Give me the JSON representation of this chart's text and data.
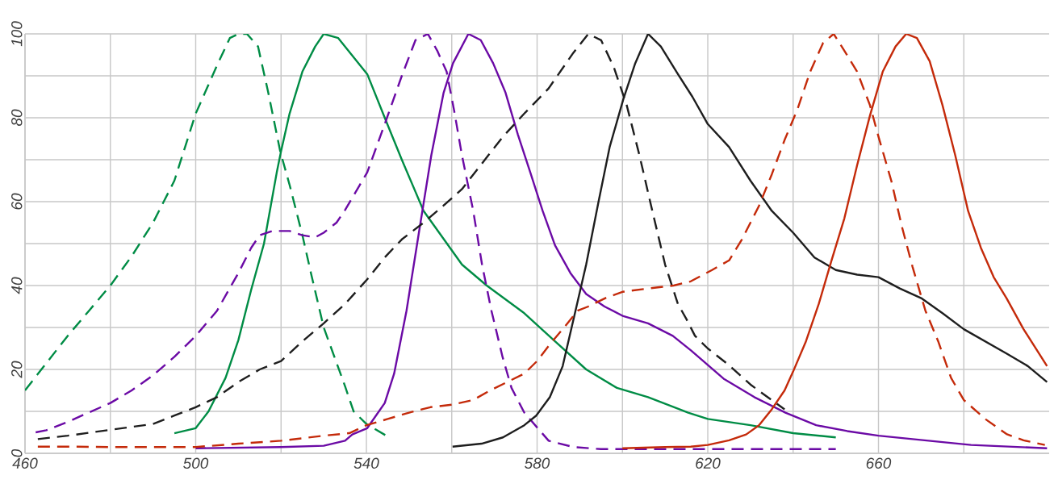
{
  "chart_data": {
    "type": "line",
    "xlim": [
      460,
      700
    ],
    "ylim": [
      0,
      100
    ],
    "xticks": [
      460,
      {
        "value": 480,
        "label": null
      },
      500,
      {
        "value": 520,
        "label": null
      },
      540,
      {
        "value": 560,
        "label": null
      },
      580,
      {
        "value": 600,
        "label": null
      },
      620,
      {
        "value": 640,
        "label": null
      },
      660,
      {
        "value": 680,
        "label": null
      }
    ],
    "yticks": [
      0,
      {
        "value": 10,
        "label": null
      },
      20,
      {
        "value": 30,
        "label": null
      },
      40,
      {
        "value": 50,
        "label": null
      },
      60,
      {
        "value": 70,
        "label": null
      },
      80,
      {
        "value": 90,
        "label": null
      },
      100
    ],
    "grid": true,
    "marker": "none",
    "series": [
      {
        "color": "#008c45",
        "line_style": "dashed",
        "x": [
          460,
          465,
          470,
          475,
          480,
          485,
          490,
          495,
          500,
          505,
          508,
          510,
          512,
          514.6,
          517,
          519.8,
          522,
          525,
          527,
          530,
          535,
          537,
          540,
          545
        ],
        "values": [
          15,
          21.5,
          28,
          34,
          40,
          47,
          55,
          65,
          81,
          92.5,
          99,
          100,
          100,
          97,
          86,
          72,
          64,
          52,
          43,
          30,
          16,
          10,
          7,
          4
        ]
      },
      {
        "color": "#008c45",
        "line_style": "solid",
        "x": [
          495,
          500,
          503,
          507,
          510,
          513,
          516,
          519,
          520,
          522,
          525,
          528,
          530,
          533.4,
          540.2,
          544.3,
          548.3,
          553.4,
          562.4,
          568.2,
          577,
          584.2,
          591.5,
          598.7,
          606,
          615.4,
          620,
          630,
          640,
          650
        ],
        "values": [
          4.8,
          6,
          10,
          18,
          27,
          39,
          50,
          67,
          72,
          81,
          91,
          97,
          100,
          99,
          90.4,
          80,
          70,
          57.8,
          45,
          40,
          33.4,
          26.7,
          20,
          15.6,
          13.4,
          9.7,
          8.2,
          6.7,
          4.8,
          3.8
        ]
      },
      {
        "color": "#6b0aa5",
        "line_style": "dashed",
        "x": [
          462.5,
          465,
          470,
          480,
          485,
          490,
          495,
          500,
          505,
          510,
          513,
          515,
          518,
          522,
          525,
          528,
          530,
          533,
          535,
          540.2,
          544.3,
          548.3,
          551.5,
          554.4,
          556.6,
          558.8,
          560.6,
          562.4,
          565,
          567.1,
          569.3,
          571.9,
          574,
          577,
          582.7,
          588.5,
          595,
          606,
          650
        ],
        "values": [
          5,
          5.5,
          7.5,
          12,
          15,
          18.6,
          23,
          28,
          34,
          43,
          49,
          52,
          53,
          53,
          52,
          51.5,
          52.6,
          55,
          58,
          67,
          78.5,
          90,
          98.5,
          100,
          96,
          91,
          81.5,
          71,
          58,
          45,
          34,
          23,
          15.6,
          9.7,
          3,
          1.5,
          1,
          1,
          1
        ]
      },
      {
        "color": "#6b0aa5",
        "line_style": "solid",
        "x": [
          500,
          520,
          530,
          535,
          536.7,
          540.2,
          544.3,
          546.5,
          549.4,
          552.3,
          555.2,
          558.1,
          560.3,
          563.9,
          566.8,
          569.7,
          572.6,
          575.5,
          578.4,
          581.3,
          584.2,
          587.8,
          591.5,
          595.8,
          600.2,
          606,
          611.8,
          616.1,
          623.7,
          630.9,
          638.2,
          645.4,
          652.7,
          660,
          670.8,
          681.7,
          699.5
        ],
        "values": [
          1.2,
          1.5,
          1.8,
          3,
          4.5,
          6,
          12,
          19,
          34,
          52.6,
          71,
          86,
          93,
          100,
          98.5,
          93,
          86,
          76,
          67,
          57.8,
          49.6,
          43,
          38,
          35,
          32.7,
          31,
          28,
          24.5,
          17.8,
          13.4,
          9.7,
          6.7,
          5.3,
          4.2,
          3.1,
          2,
          1.2
        ]
      },
      {
        "color": "#1e1e1e",
        "line_style": "dashed",
        "x": [
          463,
          470,
          480,
          490,
          495,
          500,
          505,
          510,
          515,
          520,
          525,
          530,
          535,
          540.2,
          544.3,
          548.3,
          553.4,
          558,
          562.4,
          567,
          572,
          577,
          582.7,
          588.5,
          592,
          595,
          598,
          601,
          604,
          607,
          610,
          613,
          615,
          617,
          620,
          625,
          630,
          634,
          638
        ],
        "values": [
          3.4,
          4.2,
          5.6,
          7,
          9,
          11,
          13.4,
          17,
          20,
          22,
          26.7,
          31,
          35.6,
          41.5,
          46.7,
          51,
          55,
          59,
          63,
          69,
          75.5,
          81,
          87,
          95.5,
          100,
          98.5,
          92,
          83,
          71,
          57.8,
          45,
          35.6,
          32,
          28,
          25,
          21,
          16.4,
          13.4,
          10.5
        ]
      },
      {
        "color": "#1e1e1e",
        "line_style": "solid",
        "x": [
          560.2,
          567,
          572,
          577,
          579.8,
          583,
          586,
          589,
          591.5,
          594.4,
          597,
          600.2,
          603,
          606,
          609,
          613,
          616.4,
          620,
          625,
          630,
          635,
          640,
          645,
          650,
          655,
          660,
          665,
          670,
          675,
          680,
          685,
          690,
          695,
          699.5
        ],
        "values": [
          1.6,
          2.3,
          3.8,
          6.7,
          9,
          13.4,
          20.8,
          34,
          45,
          60,
          73,
          84.4,
          93,
          100,
          97,
          90.4,
          85,
          78.5,
          73,
          65,
          57.8,
          52.6,
          46.7,
          43.7,
          42.6,
          42,
          39.3,
          37,
          33.4,
          29.6,
          26.7,
          23.8,
          20.8,
          17
        ]
      },
      {
        "color": "#c42a0a",
        "line_style": "dashed",
        "x": [
          463,
          470,
          480,
          490,
          500,
          510,
          520,
          530,
          536,
          540,
          545,
          550,
          555,
          560,
          565,
          569,
          573,
          577,
          580,
          583,
          586,
          589.5,
          592,
          596,
          600,
          606,
          612,
          616,
          621,
          625,
          628,
          632,
          635,
          638,
          641,
          644,
          647,
          649.5,
          652,
          655,
          658,
          660,
          663,
          665.5,
          668,
          671,
          674,
          677,
          680,
          685,
          690,
          694,
          699
        ],
        "values": [
          1.6,
          1.6,
          1.5,
          1.5,
          1.5,
          2.3,
          3,
          4.2,
          4.8,
          6.7,
          8.2,
          9.7,
          11,
          11.6,
          12.7,
          15,
          17,
          19,
          22,
          26,
          29.6,
          34,
          35,
          37,
          38.5,
          39.3,
          40,
          41,
          43.7,
          46,
          51,
          59,
          66.5,
          74.7,
          82,
          91,
          97.8,
          100,
          96,
          91,
          83,
          75.5,
          65,
          54,
          44.4,
          34,
          26.7,
          18,
          12.7,
          8.2,
          4.6,
          3.1,
          2
        ]
      },
      {
        "color": "#c42a0a",
        "line_style": "solid",
        "x": [
          600,
          610,
          616,
          620,
          625,
          629,
          632,
          635,
          638,
          640,
          643,
          646,
          649,
          652,
          655,
          658,
          661,
          664,
          666.5,
          669,
          672,
          675,
          678,
          681,
          684,
          687,
          690,
          694,
          699.5
        ],
        "values": [
          1.2,
          1.5,
          1.6,
          2,
          3.1,
          4.5,
          6.7,
          10.5,
          15,
          19.5,
          26.7,
          35.6,
          46,
          56,
          68.7,
          80.5,
          91,
          97,
          100,
          99,
          93.5,
          83,
          71,
          57.8,
          49,
          42,
          37,
          29.6,
          20.8
        ]
      }
    ]
  }
}
